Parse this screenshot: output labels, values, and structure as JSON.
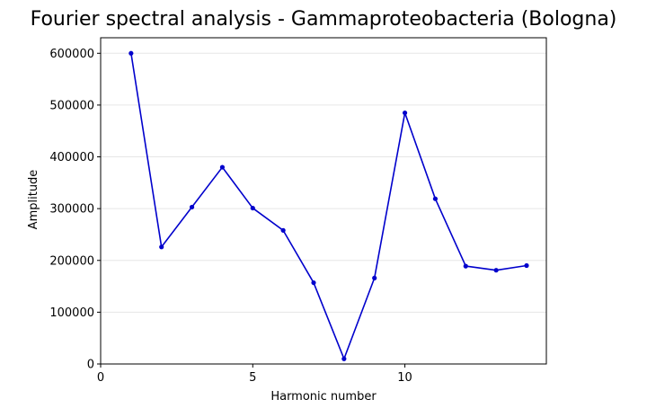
{
  "chart_data": {
    "type": "line",
    "title": "Fourier spectral analysis - Gammaproteobacteria (Bologna)",
    "xlabel": "Harmonic number",
    "ylabel": "Amplitude",
    "xlim": [
      0,
      14.65
    ],
    "ylim": [
      0,
      630000
    ],
    "xticks": [
      0,
      5,
      10
    ],
    "yticks": [
      0,
      100000,
      200000,
      300000,
      400000,
      500000,
      600000
    ],
    "grid": "horizontal",
    "legend": "none",
    "series": [
      {
        "color": "#0000cc",
        "marker": "dot",
        "x": [
          1,
          2,
          3,
          4,
          5,
          6,
          7,
          8,
          9,
          10,
          11,
          12,
          13,
          14
        ],
        "y": [
          600000,
          226000,
          303000,
          380000,
          301000,
          258000,
          157000,
          10000,
          166000,
          485000,
          319000,
          189000,
          181000,
          190000
        ]
      }
    ]
  }
}
